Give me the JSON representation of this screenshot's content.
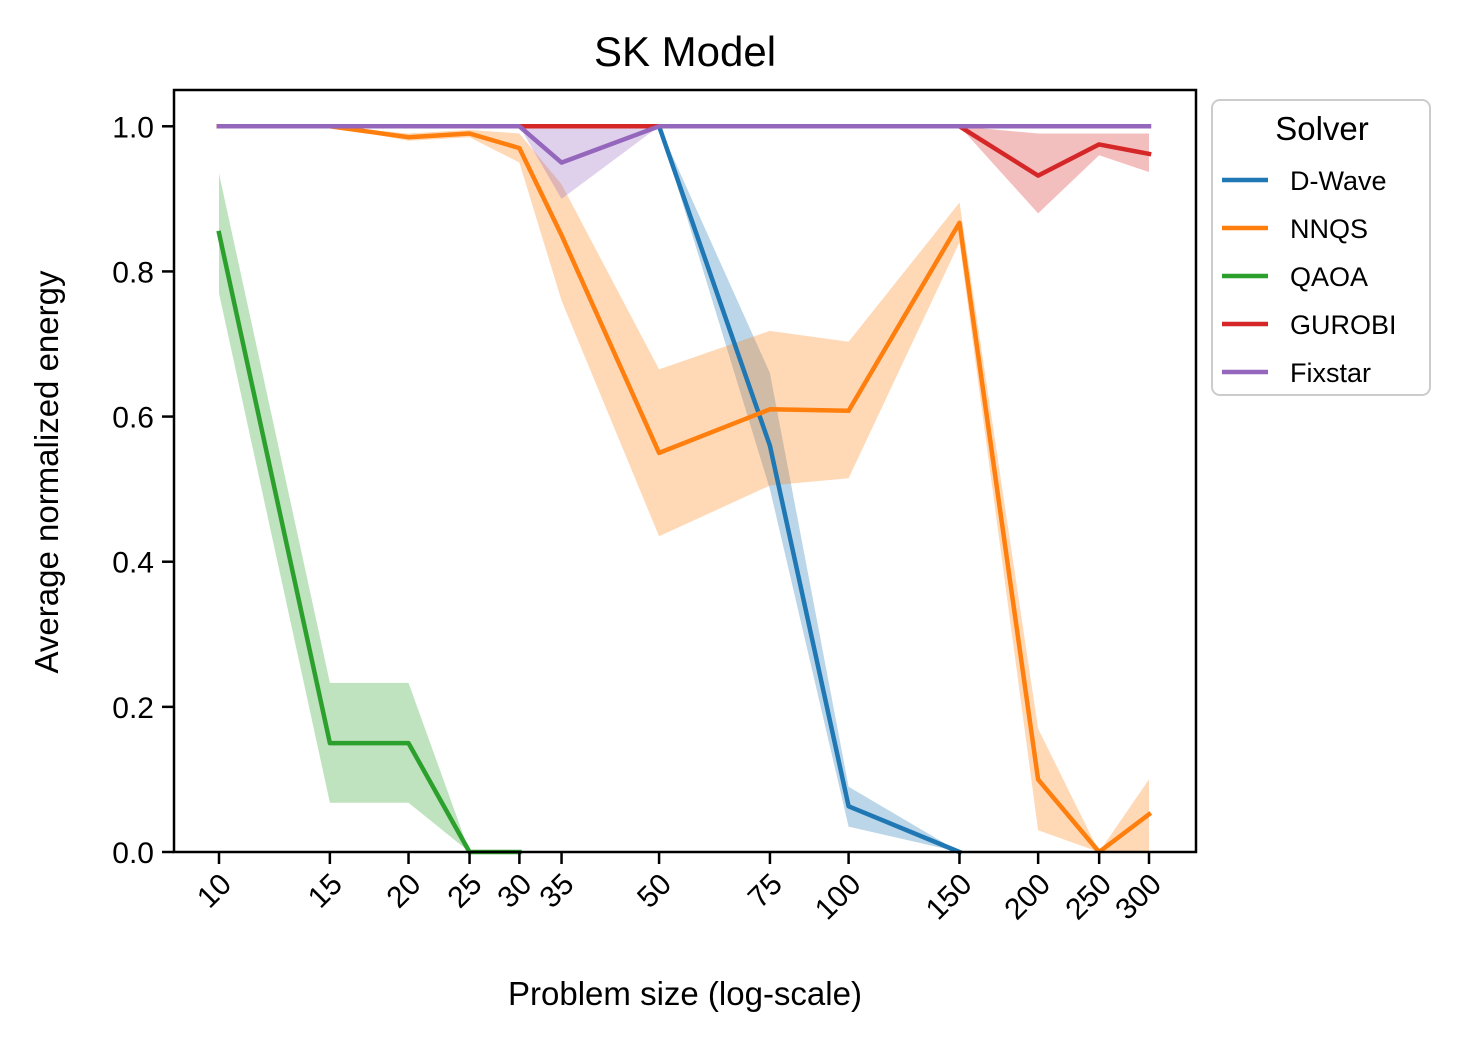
{
  "chart_data": {
    "type": "line",
    "title": "SK Model",
    "xlabel": "Problem size (log-scale)",
    "ylabel": "Average normalized energy",
    "xscale": "log",
    "ylim": [
      0.0,
      1.05
    ],
    "x_ticks": [
      10,
      15,
      20,
      25,
      30,
      35,
      50,
      75,
      100,
      150,
      200,
      250,
      300
    ],
    "x_tick_labels": [
      "10",
      "15",
      "20",
      "25",
      "30",
      "35",
      "50",
      "75",
      "100",
      "150",
      "200",
      "250",
      "300"
    ],
    "y_ticks": [
      0.0,
      0.2,
      0.4,
      0.6,
      0.8,
      1.0
    ],
    "y_tick_labels": [
      "0.0",
      "0.2",
      "0.4",
      "0.6",
      "0.8",
      "1.0"
    ],
    "grid": false,
    "legend": {
      "title": "Solver",
      "position": "outside-right-top"
    },
    "series": [
      {
        "name": "D-Wave",
        "color": "#1f77b4",
        "x": [
          10,
          15,
          20,
          25,
          30,
          35,
          50,
          75,
          100,
          150
        ],
        "y": [
          1.0,
          1.0,
          1.0,
          1.0,
          1.0,
          1.0,
          1.0,
          0.56,
          0.063,
          0.0
        ],
        "lower": [
          1.0,
          1.0,
          1.0,
          1.0,
          1.0,
          1.0,
          1.0,
          0.5,
          0.035,
          0.0
        ],
        "upper": [
          1.0,
          1.0,
          1.0,
          1.0,
          1.0,
          1.0,
          1.0,
          0.66,
          0.09,
          0.0
        ]
      },
      {
        "name": "NNQS",
        "color": "#ff7f0e",
        "x": [
          10,
          15,
          20,
          25,
          30,
          35,
          50,
          75,
          100,
          150,
          200,
          250,
          300
        ],
        "y": [
          1.0,
          1.0,
          0.985,
          0.99,
          0.97,
          0.85,
          0.55,
          0.61,
          0.608,
          0.867,
          0.1,
          0.0,
          0.052
        ],
        "lower": [
          1.0,
          1.0,
          0.98,
          0.985,
          0.95,
          0.76,
          0.435,
          0.505,
          0.515,
          0.84,
          0.03,
          0.0,
          0.0
        ],
        "upper": [
          1.0,
          1.0,
          0.99,
          0.995,
          0.99,
          0.92,
          0.665,
          0.718,
          0.703,
          0.895,
          0.17,
          0.0,
          0.1
        ]
      },
      {
        "name": "QAOA",
        "color": "#2ca02c",
        "x": [
          10,
          15,
          20,
          25,
          30
        ],
        "y": [
          0.853,
          0.15,
          0.15,
          0.0,
          0.0
        ],
        "lower": [
          0.77,
          0.068,
          0.068,
          0.0,
          0.0
        ],
        "upper": [
          0.935,
          0.233,
          0.233,
          0.0,
          0.0
        ]
      },
      {
        "name": "GUROBI",
        "color": "#d62728",
        "x": [
          10,
          15,
          20,
          25,
          30,
          35,
          50,
          75,
          100,
          150,
          200,
          250,
          300
        ],
        "y": [
          1.0,
          1.0,
          1.0,
          1.0,
          1.0,
          1.0,
          1.0,
          1.0,
          1.0,
          1.0,
          0.932,
          0.975,
          0.962
        ],
        "lower": [
          1.0,
          1.0,
          1.0,
          1.0,
          1.0,
          1.0,
          1.0,
          1.0,
          1.0,
          1.0,
          0.88,
          0.96,
          0.937
        ],
        "upper": [
          1.0,
          1.0,
          1.0,
          1.0,
          1.0,
          1.0,
          1.0,
          1.0,
          1.0,
          1.0,
          0.99,
          0.99,
          0.99
        ]
      },
      {
        "name": "Fixstar",
        "color": "#9467bd",
        "x": [
          10,
          15,
          20,
          25,
          30,
          35,
          50,
          75,
          100,
          150,
          200,
          250,
          300
        ],
        "y": [
          1.0,
          1.0,
          1.0,
          1.0,
          1.0,
          0.95,
          1.0,
          1.0,
          1.0,
          1.0,
          1.0,
          1.0,
          1.0
        ],
        "lower": [
          1.0,
          1.0,
          1.0,
          1.0,
          1.0,
          0.9,
          1.0,
          1.0,
          1.0,
          1.0,
          1.0,
          1.0,
          1.0
        ],
        "upper": [
          1.0,
          1.0,
          1.0,
          1.0,
          1.0,
          1.0,
          1.0,
          1.0,
          1.0,
          1.0,
          1.0,
          1.0,
          1.0
        ]
      }
    ]
  }
}
